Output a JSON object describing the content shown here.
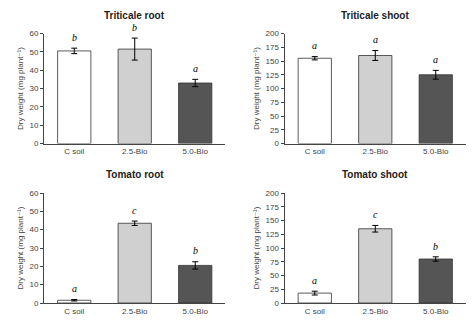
{
  "chart_data": [
    {
      "type": "bar",
      "title": "Triticale root",
      "ylabel": "Dry weight (mg plant⁻¹)",
      "categories": [
        "C soil",
        "2.5-Bio",
        "5.0-Bio"
      ],
      "values": [
        50.5,
        51.5,
        33.0
      ],
      "errors": [
        1.5,
        6.0,
        2.0
      ],
      "annotations": [
        "b",
        "b",
        "a"
      ],
      "ylim": [
        0,
        60
      ],
      "yticks": [
        0,
        10,
        20,
        30,
        40,
        50,
        60
      ],
      "colors": [
        "#ffffff",
        "#d0d0d0",
        "#555555"
      ],
      "grid": false
    },
    {
      "type": "bar",
      "title": "Triticale shoot",
      "ylabel": "Dry weight (mg plant⁻¹)",
      "categories": [
        "C soil",
        "2.5-Bio",
        "5.0-Bio"
      ],
      "values": [
        155.0,
        160.0,
        125.0
      ],
      "errors": [
        3.0,
        9.0,
        8.0
      ],
      "annotations": [
        "a",
        "a",
        "a"
      ],
      "ylim": [
        0,
        200
      ],
      "yticks": [
        0,
        25,
        50,
        75,
        100,
        125,
        150,
        175,
        200
      ],
      "colors": [
        "#ffffff",
        "#d0d0d0",
        "#555555"
      ],
      "grid": false
    },
    {
      "type": "bar",
      "title": "Tomato root",
      "ylabel": "Dry weight (mg plant⁻¹)",
      "categories": [
        "C soil",
        "2.5-Bio",
        "5.0-Bio"
      ],
      "values": [
        1.5,
        43.5,
        20.5
      ],
      "errors": [
        0.4,
        1.2,
        2.0
      ],
      "annotations": [
        "a",
        "c",
        "b"
      ],
      "ylim": [
        0,
        60
      ],
      "yticks": [
        0,
        10,
        20,
        30,
        40,
        50,
        60
      ],
      "colors": [
        "#ffffff",
        "#d0d0d0",
        "#555555"
      ],
      "grid": false
    },
    {
      "type": "bar",
      "title": "Tomato shoot",
      "ylabel": "Dry weight (mg plant⁻¹)",
      "categories": [
        "C soil",
        "2.5-Bio",
        "5.0-Bio"
      ],
      "values": [
        18.0,
        135.0,
        80.0
      ],
      "errors": [
        3.5,
        6.0,
        4.0
      ],
      "annotations": [
        "a",
        "c",
        "b"
      ],
      "ylim": [
        0,
        200
      ],
      "yticks": [
        0,
        25,
        50,
        75,
        100,
        125,
        150,
        175,
        200
      ],
      "colors": [
        "#ffffff",
        "#d0d0d0",
        "#555555"
      ],
      "grid": false
    }
  ]
}
